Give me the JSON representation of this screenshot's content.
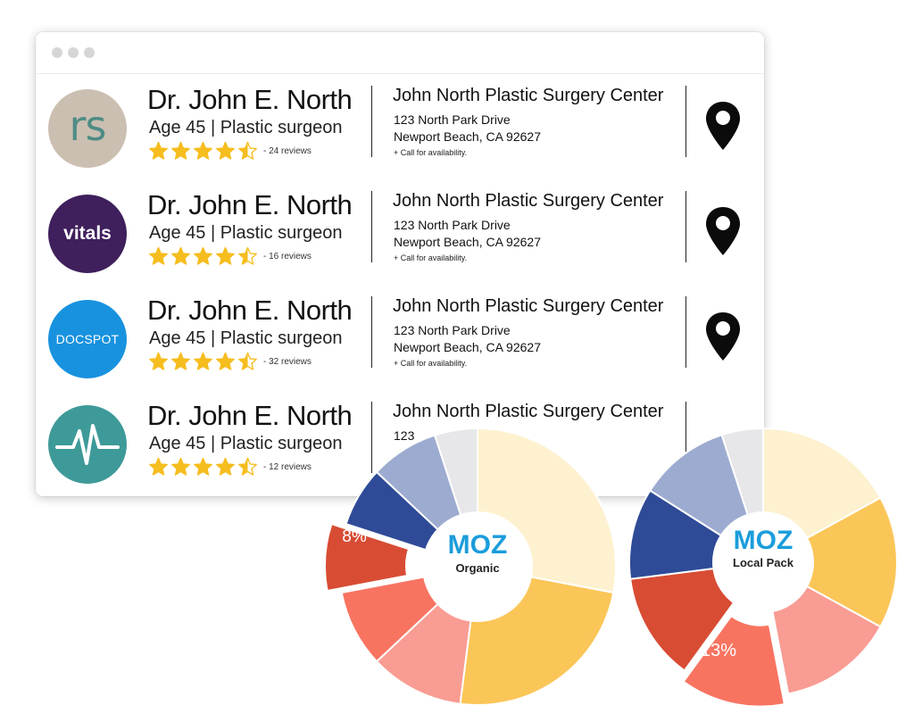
{
  "listings": [
    {
      "logo": "rs",
      "logo_color": "#cbbfb1",
      "name": "Dr. John E. North",
      "subtitle": "Age 45 | Plastic surgeon",
      "rating": 4.5,
      "reviews": "- 24 reviews",
      "center": "John North Plastic Surgery Center",
      "address1": "123 North Park Drive",
      "address2": "Newport Beach, CA 92627",
      "availability": "+ Call for availability.",
      "icon": "map-pin-icon"
    },
    {
      "logo": "vitals",
      "logo_color": "#3f1f5c",
      "name": "Dr. John E. North",
      "subtitle": "Age 45 | Plastic surgeon",
      "rating": 4.5,
      "reviews": "- 16 reviews",
      "center": "John North Plastic Surgery Center",
      "address1": "123 North Park Drive",
      "address2": "Newport Beach, CA 92627",
      "availability": "+ Call for availability.",
      "icon": "map-pin-icon"
    },
    {
      "logo": "DOCSPOT",
      "logo_color": "#1892df",
      "name": "Dr. John E. North",
      "subtitle": "Age 45 | Plastic surgeon",
      "rating": 4.5,
      "reviews": "- 32 reviews",
      "center": "John North Plastic Surgery Center",
      "address1": "123 North Park Drive",
      "address2": "Newport Beach, CA 92627",
      "availability": "+ Call for availability.",
      "icon": "map-pin-icon"
    },
    {
      "logo": "heartbeat-icon",
      "logo_color": "#3e9a98",
      "name": "Dr. John E. North",
      "subtitle": "Age 45 | Plastic surgeon",
      "rating": 4.5,
      "reviews": "- 12 reviews",
      "center": "John North Plastic Surgery Center",
      "address1": "123",
      "icon": "map-pin-icon"
    }
  ],
  "charts": {
    "organic": {
      "brand": "MOZ",
      "caption": "Organic",
      "callout_label": "8%",
      "slices": [
        {
          "value": 28,
          "color": "#fdf1cf"
        },
        {
          "value": 24,
          "color": "#fbc658"
        },
        {
          "value": 11,
          "color": "#f99c93"
        },
        {
          "value": 9,
          "color": "#f87461"
        },
        {
          "value": 8,
          "color": "#d84c34",
          "exploded": true
        },
        {
          "value": 7,
          "color": "#2f4b97"
        },
        {
          "value": 8,
          "color": "#9dabd0"
        },
        {
          "value": 5,
          "color": "#e7e7ea"
        }
      ]
    },
    "local_pack": {
      "brand": "MOZ",
      "caption": "Local Pack",
      "callout_label": "13%",
      "slices": [
        {
          "value": 17,
          "color": "#fdf1cf"
        },
        {
          "value": 16,
          "color": "#fbc658"
        },
        {
          "value": 14,
          "color": "#f99c93"
        },
        {
          "value": 13,
          "color": "#f87461",
          "exploded": true
        },
        {
          "value": 13,
          "color": "#d84c34"
        },
        {
          "value": 11,
          "color": "#2f4b97"
        },
        {
          "value": 11,
          "color": "#9dabd0"
        },
        {
          "value": 5,
          "color": "#e7e7ea"
        }
      ]
    }
  }
}
